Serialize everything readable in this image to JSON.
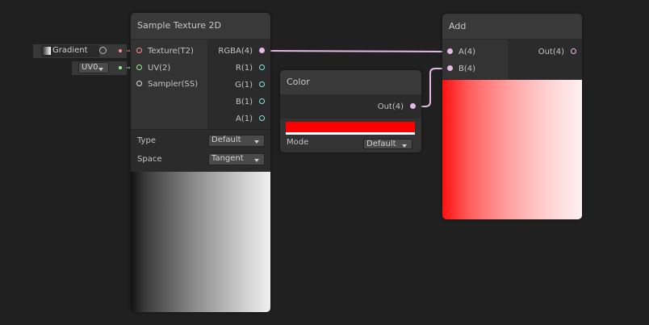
{
  "inputs": {
    "gradient_label": "Gradient",
    "uv_value": "UV0"
  },
  "sample_texture": {
    "title": "Sample Texture 2D",
    "inputs": [
      "Texture(T2)",
      "UV(2)",
      "Sampler(SS)"
    ],
    "outputs": [
      "RGBA(4)",
      "R(1)",
      "G(1)",
      "B(1)",
      "A(1)"
    ],
    "type_label": "Type",
    "type_value": "Default",
    "space_label": "Space",
    "space_value": "Tangent"
  },
  "color_node": {
    "title": "Color",
    "output": "Out(4)",
    "mode_label": "Mode",
    "mode_value": "Default",
    "color": "#ff0000"
  },
  "add_node": {
    "title": "Add",
    "inputs": [
      "A(4)",
      "B(4)"
    ],
    "output": "Out(4)"
  },
  "colors": {
    "vector4": "#e6b8e6",
    "vector1": "#84e4e7",
    "texture": "#ff8b8b",
    "vector2": "#9aef92"
  }
}
